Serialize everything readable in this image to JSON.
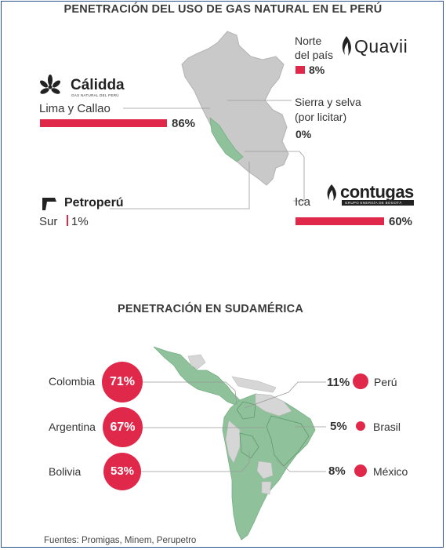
{
  "title_peru": "PENETRACIÓN DEL USO DE GAS NATURAL EN EL PERÚ",
  "title_sudamerica": "PENETRACIÓN EN SUDAMÉRICA",
  "peru_regions": {
    "norte": {
      "label_line1": "Norte",
      "label_line2": "del país",
      "value_text": "8%",
      "value": 8,
      "logo": "Quavii"
    },
    "lima": {
      "label": "Lima y Callao",
      "value_text": "86%",
      "value": 86,
      "logo": "Cálidda",
      "logo_sub": "GAS NATURAL DEL PERÚ"
    },
    "sierra": {
      "label_line1": "Sierra y selva",
      "label_line2": "(por licitar)",
      "value_text": "0%",
      "value": 0
    },
    "ica": {
      "label": "Ica",
      "value_text": "60%",
      "value": 60,
      "logo": "contugas",
      "logo_sub": "GRUPO ENERGÍA DE BOGOTÁ"
    },
    "sur": {
      "label": "Sur",
      "value_text": "1%",
      "value": 1,
      "logo": "Petroperú"
    }
  },
  "south_america": {
    "left": [
      {
        "country": "Colombia",
        "value_text": "71%",
        "value": 71
      },
      {
        "country": "Argentina",
        "value_text": "67%",
        "value": 67
      },
      {
        "country": "Bolivia",
        "value_text": "53%",
        "value": 53
      }
    ],
    "right": [
      {
        "country": "Perú",
        "value_text": "11%",
        "value": 11
      },
      {
        "country": "Brasil",
        "value_text": "5%",
        "value": 5
      },
      {
        "country": "México",
        "value_text": "8%",
        "value": 8
      }
    ]
  },
  "source": "Fuentes: Promigas, Minem, Perupetro",
  "colors": {
    "accent": "#e0284a",
    "map_gray": "#c9c9c9",
    "map_green": "#8fc29a"
  },
  "chart_data": [
    {
      "type": "bar",
      "title": "PENETRACIÓN DEL USO DE GAS NATURAL EN EL PERÚ",
      "categories": [
        "Norte del país",
        "Lima y Callao",
        "Sierra y selva (por licitar)",
        "Ica",
        "Sur"
      ],
      "values": [
        8,
        86,
        0,
        60,
        1
      ],
      "unit": "%"
    },
    {
      "type": "bar",
      "title": "PENETRACIÓN EN SUDAMÉRICA",
      "categories": [
        "Colombia",
        "Argentina",
        "Bolivia",
        "Perú",
        "Brasil",
        "México"
      ],
      "values": [
        71,
        67,
        53,
        11,
        5,
        8
      ],
      "unit": "%"
    }
  ]
}
